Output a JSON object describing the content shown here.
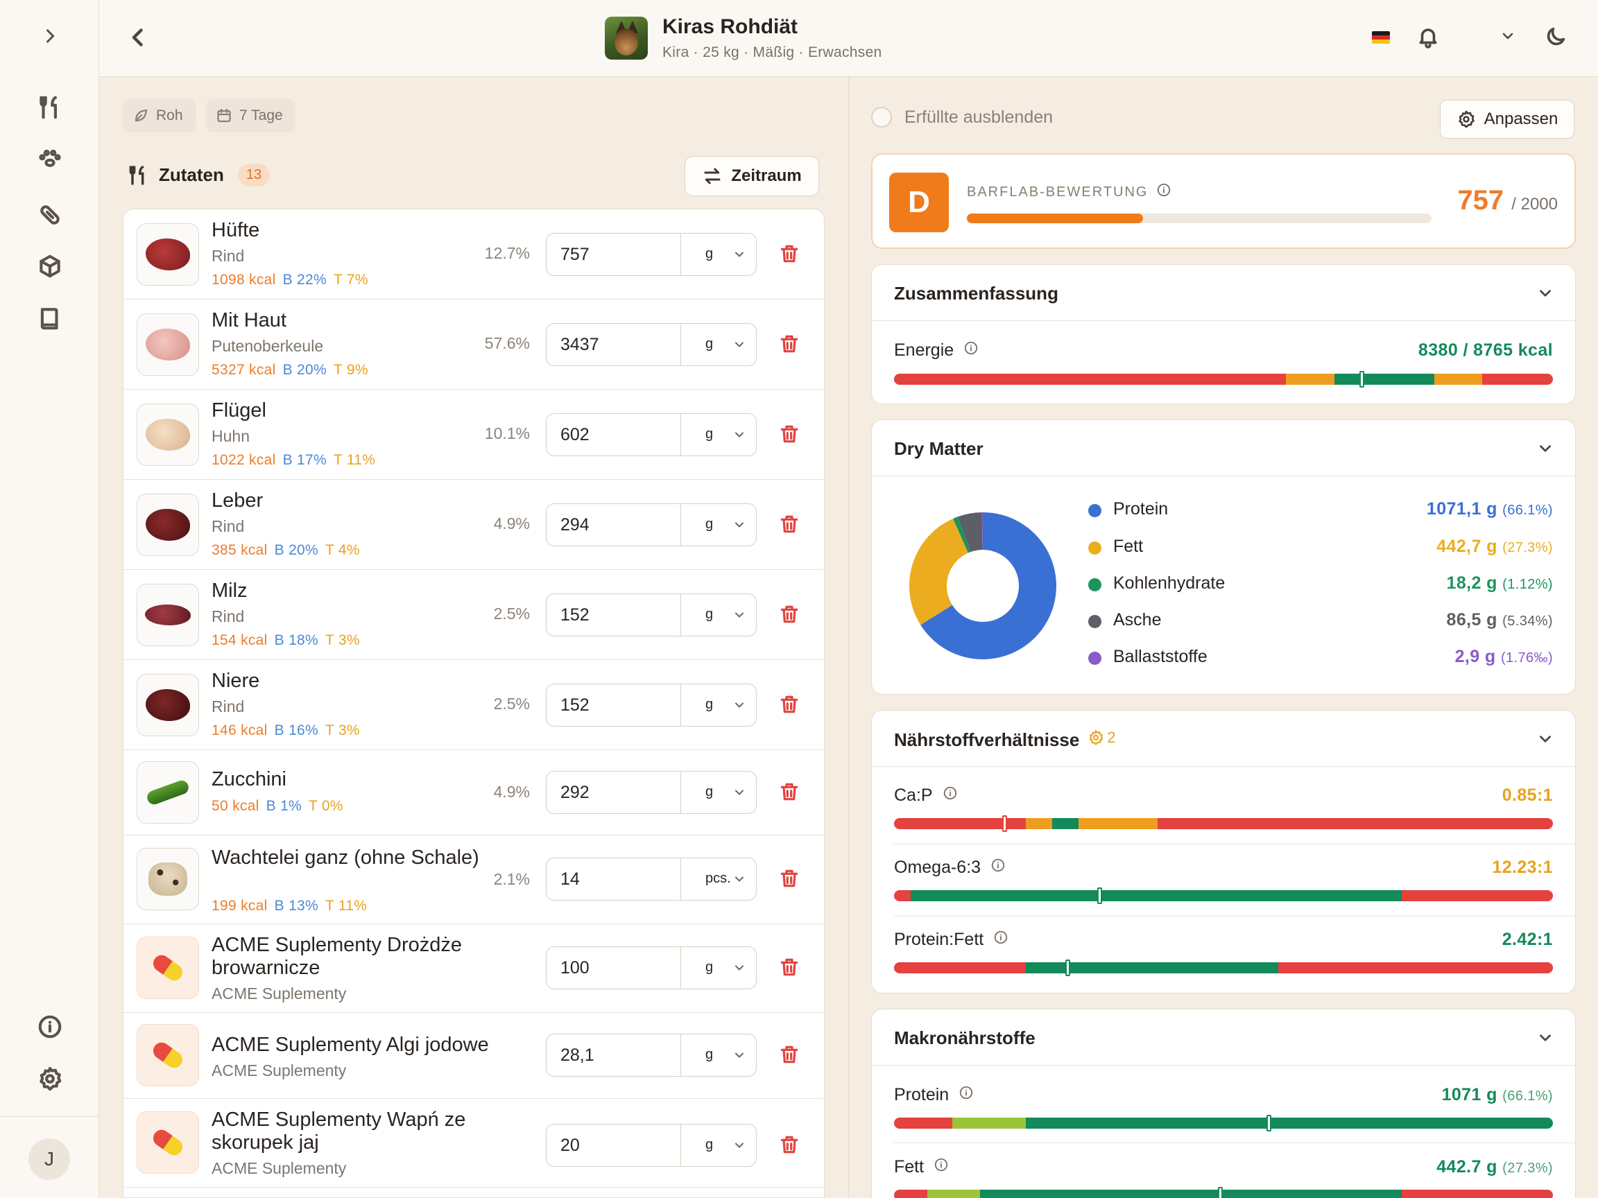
{
  "header": {
    "title": "Kiras Rohdiät",
    "subtitle": "Kira · 25 kg · Mäßig · Erwachsen"
  },
  "chips": {
    "raw": "Roh",
    "days": "7 Tage"
  },
  "ingredients": {
    "title": "Zutaten",
    "count": "13",
    "period_button": "Zeitraum",
    "items": [
      {
        "name": "Hüfte",
        "sub": "Rind",
        "kcal": "1098 kcal",
        "b": "B 22%",
        "t": "T 7%",
        "pct": "12.7%",
        "qty": "757",
        "unit": "g"
      },
      {
        "name": "Mit Haut",
        "sub": "Putenoberkeule",
        "kcal": "5327 kcal",
        "b": "B 20%",
        "t": "T 9%",
        "pct": "57.6%",
        "qty": "3437",
        "unit": "g"
      },
      {
        "name": "Flügel",
        "sub": "Huhn",
        "kcal": "1022 kcal",
        "b": "B 17%",
        "t": "T 11%",
        "pct": "10.1%",
        "qty": "602",
        "unit": "g"
      },
      {
        "name": "Leber",
        "sub": "Rind",
        "kcal": "385 kcal",
        "b": "B 20%",
        "t": "T 4%",
        "pct": "4.9%",
        "qty": "294",
        "unit": "g"
      },
      {
        "name": "Milz",
        "sub": "Rind",
        "kcal": "154 kcal",
        "b": "B 18%",
        "t": "T 3%",
        "pct": "2.5%",
        "qty": "152",
        "unit": "g"
      },
      {
        "name": "Niere",
        "sub": "Rind",
        "kcal": "146 kcal",
        "b": "B 16%",
        "t": "T 3%",
        "pct": "2.5%",
        "qty": "152",
        "unit": "g"
      },
      {
        "name": "Zucchini",
        "kcal": "50 kcal",
        "b": "B 1%",
        "t": "T 0%",
        "pct": "4.9%",
        "qty": "292",
        "unit": "g"
      },
      {
        "name": "Wachtelei ganz (ohne Schale)",
        "kcal": "199 kcal",
        "b": "B 13%",
        "t": "T 11%",
        "pct": "2.1%",
        "qty": "14",
        "unit": "pcs."
      },
      {
        "name": "ACME Suplementy Drożdże browarnicze",
        "sub": "ACME Suplementy",
        "qty": "100",
        "unit": "g"
      },
      {
        "name": "ACME Suplementy Algi jodowe",
        "sub": "ACME Suplementy",
        "qty": "28,1",
        "unit": "g"
      },
      {
        "name": "ACME Suplementy Wapń ze skorupek jaj",
        "sub": "ACME Suplementy",
        "qty": "20",
        "unit": "g"
      }
    ]
  },
  "right": {
    "hide_fulfilled": "Erfüllte ausblenden",
    "customize": "Anpassen",
    "score": {
      "grade": "D",
      "label": "BARFLAB-BEWERTUNG",
      "value": "757",
      "max": "/ 2000",
      "fraction": 0.3785
    },
    "summary": {
      "title": "Zusammenfassung",
      "energy_label": "Energie",
      "energy_value": "8380 / 8765 kcal"
    },
    "dry_matter": {
      "title": "Dry Matter",
      "items": [
        {
          "name": "Protein",
          "value": "1071,1 g",
          "pct": "(66.1%)",
          "color": "#3a6fd4"
        },
        {
          "name": "Fett",
          "value": "442,7 g",
          "pct": "(27.3%)",
          "color": "#ebad1f"
        },
        {
          "name": "Kohlenhydrate",
          "value": "18,2 g",
          "pct": "(1.12%)",
          "color": "#1b9460"
        },
        {
          "name": "Asche",
          "value": "86,5 g",
          "pct": "(5.34%)",
          "color": "#5c5f66"
        },
        {
          "name": "Ballaststoffe",
          "value": "2,9 g",
          "pct": "(1.76‰)",
          "color": "#8a5bc7"
        }
      ]
    },
    "ratios": {
      "title": "Nährstoffverhältnisse",
      "badge": "2",
      "items": [
        {
          "label": "Ca:P",
          "value": "0.85:1",
          "color": "#e9a21d"
        },
        {
          "label": "Omega-6:3",
          "value": "12.23:1",
          "color": "#e9a21d"
        },
        {
          "label": "Protein:Fett",
          "value": "2.42:1",
          "color": "#138a5a"
        }
      ]
    },
    "macros": {
      "title": "Makronährstoffe",
      "items": [
        {
          "label": "Protein",
          "value": "1071 g",
          "pct": "(66.1%)",
          "color": "#138a5a"
        },
        {
          "label": "Fett",
          "value": "442.7 g",
          "pct": "(27.3%)",
          "color": "#138a5a"
        }
      ]
    }
  },
  "colors": {
    "accent": "#f07b1a",
    "danger": "#e2433f",
    "good": "#138a5a",
    "warn": "#e9a21d",
    "bg": "#f5ede2"
  }
}
